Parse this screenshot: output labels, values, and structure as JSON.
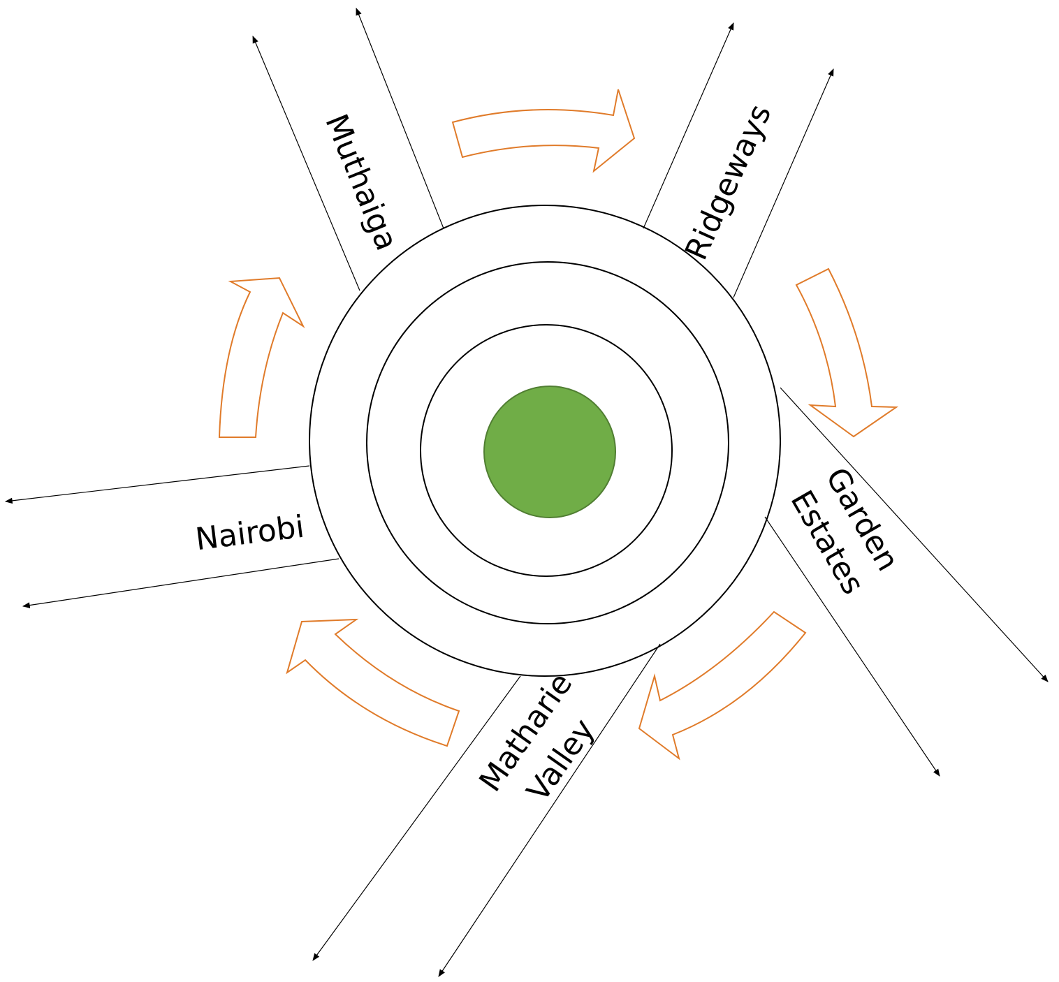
{
  "labels": {
    "muthaiga": [
      "Muthaiga"
    ],
    "ridgeways": [
      "Ridgeways"
    ],
    "garden_estates": [
      "Garden",
      "Estates"
    ],
    "nairobi": [
      "Nairobi"
    ],
    "matharie_valley": [
      "Matharie",
      "Valley"
    ]
  }
}
